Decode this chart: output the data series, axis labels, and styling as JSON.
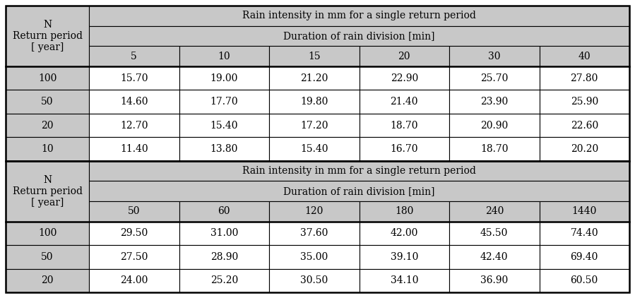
{
  "header_bg": "#c8c8c8",
  "data_bg": "#ffffff",
  "border_color": "#000000",
  "table_title_top": "Rain intensity in mm for a single return period",
  "table_subtitle_top": "Duration of rain division [min]",
  "col_header_top": [
    "5",
    "10",
    "15",
    "20",
    "30",
    "40"
  ],
  "row_header_lines": [
    "N",
    "Return period",
    "[ year]"
  ],
  "rows_top": [
    [
      "100",
      "15.70",
      "19.00",
      "21.20",
      "22.90",
      "25.70",
      "27.80"
    ],
    [
      "50",
      "14.60",
      "17.70",
      "19.80",
      "21.40",
      "23.90",
      "25.90"
    ],
    [
      "20",
      "12.70",
      "15.40",
      "17.20",
      "18.70",
      "20.90",
      "22.60"
    ],
    [
      "10",
      "11.40",
      "13.80",
      "15.40",
      "16.70",
      "18.70",
      "20.20"
    ]
  ],
  "table_title_bot": "Rain intensity in mm for a single return period",
  "table_subtitle_bot": "Duration of rain division [min]",
  "col_header_bot": [
    "50",
    "60",
    "120",
    "180",
    "240",
    "1440"
  ],
  "rows_bot": [
    [
      "100",
      "29.50",
      "31.00",
      "37.60",
      "42.00",
      "45.50",
      "74.40"
    ],
    [
      "50",
      "27.50",
      "28.90",
      "35.00",
      "39.10",
      "42.40",
      "69.40"
    ],
    [
      "20",
      "24.00",
      "25.20",
      "30.50",
      "34.10",
      "36.90",
      "60.50"
    ]
  ],
  "font_size": 10,
  "font_family": "serif",
  "figwidth": 8.99,
  "figheight": 4.22,
  "dpi": 100
}
